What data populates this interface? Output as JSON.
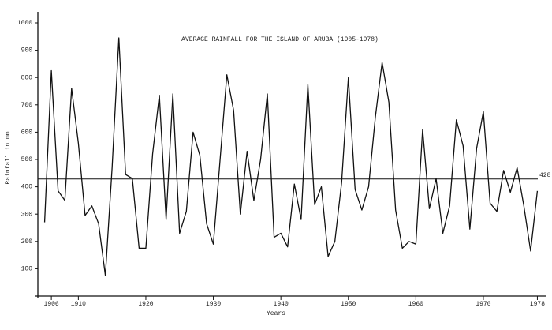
{
  "chart_data": {
    "type": "line",
    "title": "AVERAGE RAINFALL FOR THE ISLAND OF ARUBA (1905-1978)",
    "xlabel": "Years",
    "ylabel": "Rainfall in mm",
    "x": [
      1905,
      1906,
      1907,
      1908,
      1909,
      1910,
      1911,
      1912,
      1913,
      1914,
      1915,
      1916,
      1917,
      1918,
      1919,
      1920,
      1921,
      1922,
      1923,
      1924,
      1925,
      1926,
      1927,
      1928,
      1929,
      1930,
      1931,
      1932,
      1933,
      1934,
      1935,
      1936,
      1937,
      1938,
      1939,
      1940,
      1941,
      1942,
      1943,
      1944,
      1945,
      1946,
      1947,
      1948,
      1949,
      1950,
      1951,
      1952,
      1953,
      1954,
      1955,
      1956,
      1957,
      1958,
      1959,
      1960,
      1961,
      1962,
      1963,
      1964,
      1965,
      1966,
      1967,
      1968,
      1969,
      1970,
      1971,
      1972,
      1973,
      1974,
      1975,
      1976,
      1977,
      1978
    ],
    "series": [
      {
        "name": "Rainfall",
        "color": "#111111",
        "values": [
          270,
          825,
          385,
          350,
          760,
          560,
          295,
          330,
          265,
          75,
          470,
          945,
          445,
          430,
          175,
          175,
          520,
          735,
          280,
          740,
          230,
          310,
          600,
          515,
          265,
          190,
          500,
          810,
          680,
          300,
          530,
          350,
          500,
          740,
          215,
          230,
          180,
          410,
          280,
          775,
          335,
          400,
          145,
          200,
          415,
          800,
          390,
          315,
          400,
          655,
          855,
          710,
          315,
          175,
          200,
          190,
          610,
          320,
          430,
          230,
          330,
          645,
          550,
          245,
          540,
          675,
          340,
          310,
          460,
          380,
          470,
          330,
          165,
          385
        ]
      }
    ],
    "reference_line": {
      "value": 428.5
    },
    "xlim": [
      1904,
      1979
    ],
    "xticks": [
      1906,
      1910,
      1920,
      1930,
      1940,
      1950,
      1960,
      1970,
      1978
    ],
    "ylim": [
      0,
      1000
    ],
    "yticks": [
      100,
      200,
      300,
      400,
      500,
      600,
      700,
      800,
      900,
      1000
    ]
  }
}
